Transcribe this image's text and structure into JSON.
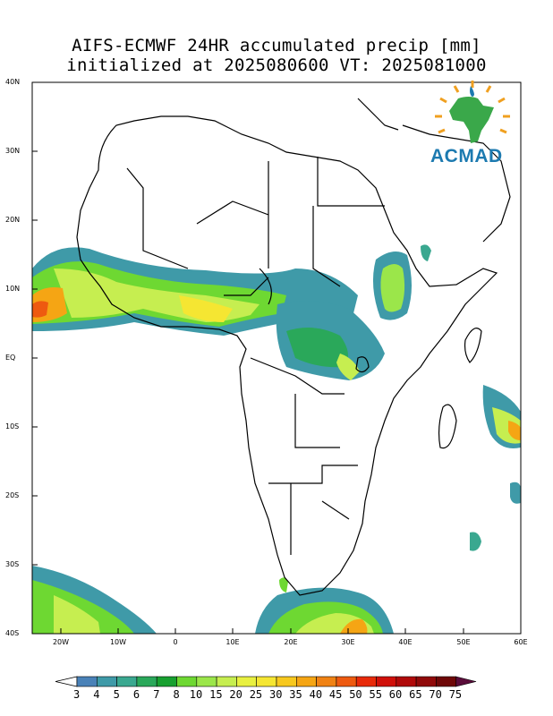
{
  "title": {
    "line1": "AIFS-ECMWF 24HR accumulated precip [mm]",
    "line2": "initialized at 2025080600 VT: 2025081000"
  },
  "map": {
    "lat_labels": [
      "40N",
      "30N",
      "20N",
      "10N",
      "EQ",
      "10S",
      "20S",
      "30S",
      "40S"
    ],
    "lon_labels": [
      "20W",
      "10W",
      "0",
      "10E",
      "20E",
      "30E",
      "40E",
      "50E",
      "60E"
    ],
    "extent": {
      "lon_min": -25,
      "lon_max": 60,
      "lat_min": -40,
      "lat_max": 40
    }
  },
  "logo": {
    "text": "ACMAD",
    "colors": {
      "africa": "#3aa84a",
      "rays": "#f0a020",
      "drop": "#1c7ab0"
    }
  },
  "colorbar": {
    "labels": [
      "3",
      "4",
      "5",
      "6",
      "7",
      "8",
      "10",
      "15",
      "20",
      "25",
      "30",
      "35",
      "40",
      "45",
      "50",
      "55",
      "60",
      "65",
      "70",
      "75"
    ],
    "colors": [
      "#4a82b8",
      "#3f9aa8",
      "#3aa890",
      "#2aa85a",
      "#18a030",
      "#6ed832",
      "#9be64a",
      "#c6ee50",
      "#e8f040",
      "#f5e632",
      "#f7c81e",
      "#f5a514",
      "#f08214",
      "#ee5a10",
      "#e82a0a",
      "#d0100a",
      "#b00a0a",
      "#900a0a",
      "#6e0808",
      "#5a0c3a"
    ]
  }
}
